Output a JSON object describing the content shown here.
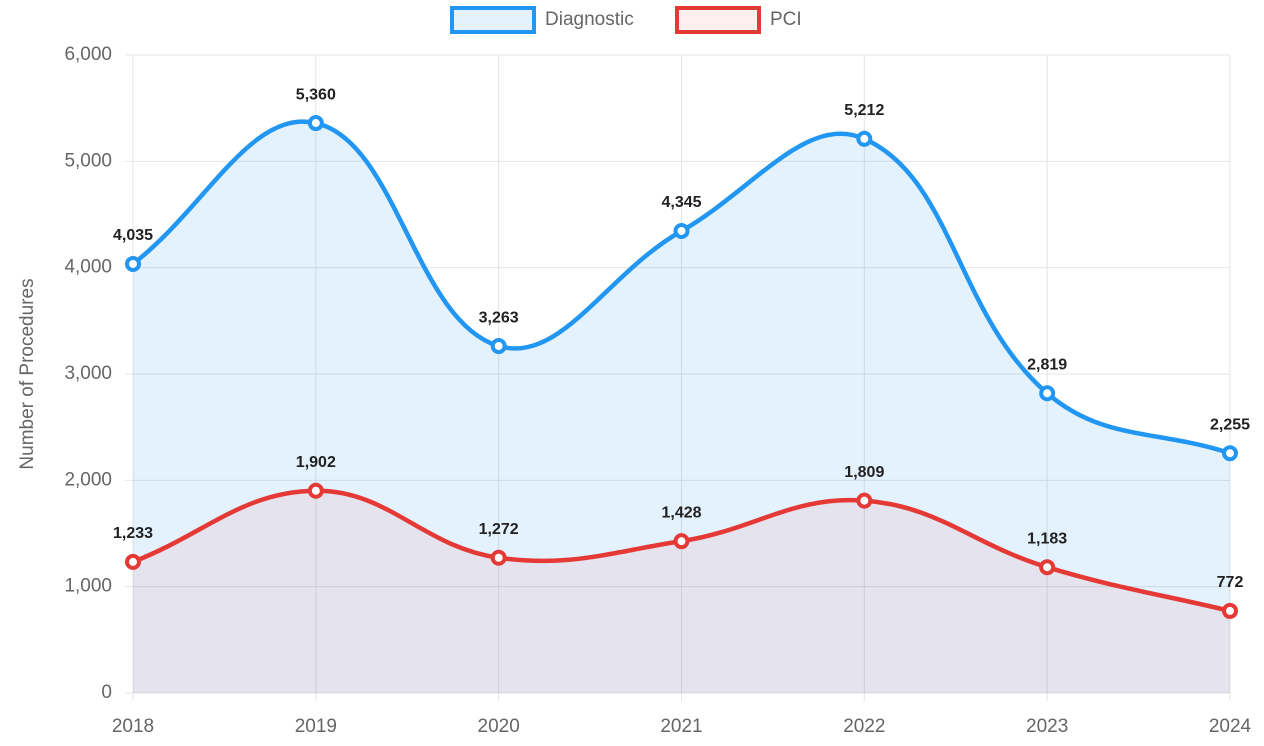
{
  "chart_data": {
    "type": "line",
    "categories": [
      "2018",
      "2019",
      "2020",
      "2021",
      "2022",
      "2023",
      "2024"
    ],
    "series": [
      {
        "name": "Diagnostic",
        "color": "#2196f3",
        "values": [
          4035,
          5360,
          3263,
          4345,
          5212,
          2819,
          2255
        ],
        "value_labels": [
          "4,035",
          "5,360",
          "3,263",
          "4,345",
          "5,212",
          "2,819",
          "2,255"
        ]
      },
      {
        "name": "PCI",
        "color": "#e53935",
        "values": [
          1233,
          1902,
          1272,
          1428,
          1809,
          1183,
          772
        ],
        "value_labels": [
          "1,233",
          "1,902",
          "1,272",
          "1,428",
          "1,809",
          "1,183",
          "772"
        ]
      }
    ],
    "y_axis_label": "Number of Procedures",
    "ylim": [
      0,
      6000
    ],
    "yticks": [
      0,
      {
        "value": 1000,
        "label": "1,000"
      },
      {
        "value": 2000,
        "label": "2,000"
      },
      {
        "value": 3000,
        "label": "3,000"
      },
      {
        "value": 4000,
        "label": "4,000"
      },
      {
        "value": 5000,
        "label": "5,000"
      },
      {
        "value": 6000,
        "label": "6,000"
      }
    ],
    "grid": true,
    "fill": true,
    "legend": "top"
  }
}
